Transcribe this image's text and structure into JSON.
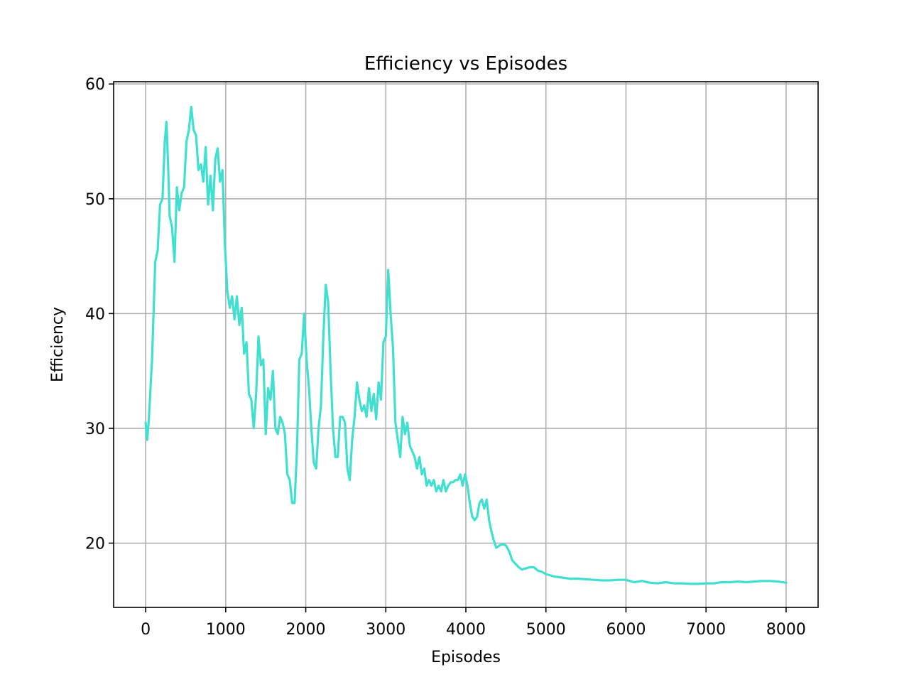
{
  "chart_data": {
    "type": "line",
    "title": "Efficiency vs Episodes",
    "xlabel": "Episodes",
    "ylabel": "Efficiency",
    "xlim": [
      -400,
      8400
    ],
    "ylim": [
      14.4,
      60.2
    ],
    "xticks": [
      0,
      1000,
      2000,
      3000,
      4000,
      5000,
      6000,
      7000,
      8000
    ],
    "yticks": [
      20,
      30,
      40,
      50,
      60
    ],
    "grid": true,
    "legend": "none",
    "series": [
      {
        "color": "#40e0d0",
        "points": [
          [
            0,
            30.5
          ],
          [
            20,
            29.0
          ],
          [
            40,
            30.8
          ],
          [
            80,
            36.0
          ],
          [
            120,
            44.5
          ],
          [
            150,
            45.5
          ],
          [
            180,
            49.5
          ],
          [
            210,
            50.0
          ],
          [
            240,
            55.0
          ],
          [
            260,
            56.7
          ],
          [
            280,
            53.0
          ],
          [
            300,
            48.5
          ],
          [
            330,
            47.5
          ],
          [
            360,
            44.5
          ],
          [
            390,
            51.0
          ],
          [
            420,
            49.0
          ],
          [
            450,
            50.5
          ],
          [
            480,
            51.0
          ],
          [
            510,
            55.0
          ],
          [
            540,
            56.0
          ],
          [
            570,
            58.0
          ],
          [
            600,
            56.0
          ],
          [
            630,
            55.5
          ],
          [
            660,
            52.5
          ],
          [
            690,
            53.0
          ],
          [
            720,
            51.5
          ],
          [
            750,
            54.5
          ],
          [
            780,
            49.5
          ],
          [
            810,
            52.0
          ],
          [
            840,
            49.0
          ],
          [
            870,
            53.5
          ],
          [
            900,
            54.4
          ],
          [
            930,
            51.5
          ],
          [
            960,
            52.5
          ],
          [
            990,
            46.0
          ],
          [
            1020,
            42.0
          ],
          [
            1050,
            40.5
          ],
          [
            1080,
            41.5
          ],
          [
            1110,
            39.5
          ],
          [
            1140,
            41.5
          ],
          [
            1170,
            39.0
          ],
          [
            1200,
            40.5
          ],
          [
            1230,
            36.5
          ],
          [
            1260,
            37.5
          ],
          [
            1290,
            33.0
          ],
          [
            1320,
            32.5
          ],
          [
            1350,
            30.0
          ],
          [
            1380,
            33.0
          ],
          [
            1410,
            38.0
          ],
          [
            1440,
            35.5
          ],
          [
            1470,
            36.0
          ],
          [
            1500,
            29.5
          ],
          [
            1530,
            33.5
          ],
          [
            1560,
            32.5
          ],
          [
            1590,
            35.0
          ],
          [
            1620,
            30.0
          ],
          [
            1650,
            29.5
          ],
          [
            1680,
            31.0
          ],
          [
            1710,
            30.5
          ],
          [
            1740,
            29.5
          ],
          [
            1770,
            26.0
          ],
          [
            1800,
            25.5
          ],
          [
            1830,
            23.5
          ],
          [
            1860,
            23.5
          ],
          [
            1890,
            28.0
          ],
          [
            1920,
            36.0
          ],
          [
            1950,
            36.5
          ],
          [
            1980,
            40.0
          ],
          [
            2010,
            36.0
          ],
          [
            2040,
            33.5
          ],
          [
            2070,
            30.0
          ],
          [
            2100,
            27.0
          ],
          [
            2130,
            26.5
          ],
          [
            2160,
            30.0
          ],
          [
            2190,
            32.0
          ],
          [
            2220,
            38.0
          ],
          [
            2250,
            42.5
          ],
          [
            2280,
            41.0
          ],
          [
            2310,
            35.0
          ],
          [
            2340,
            30.0
          ],
          [
            2370,
            27.5
          ],
          [
            2400,
            27.5
          ],
          [
            2430,
            31.0
          ],
          [
            2460,
            31.0
          ],
          [
            2490,
            30.5
          ],
          [
            2520,
            26.5
          ],
          [
            2550,
            25.5
          ],
          [
            2580,
            29.0
          ],
          [
            2610,
            31.0
          ],
          [
            2640,
            34.0
          ],
          [
            2670,
            32.5
          ],
          [
            2700,
            31.5
          ],
          [
            2730,
            32.0
          ],
          [
            2760,
            31.0
          ],
          [
            2790,
            33.5
          ],
          [
            2820,
            31.5
          ],
          [
            2850,
            33.0
          ],
          [
            2880,
            30.8
          ],
          [
            2910,
            34.0
          ],
          [
            2940,
            32.5
          ],
          [
            2970,
            37.5
          ],
          [
            3000,
            38.0
          ],
          [
            3030,
            43.8
          ],
          [
            3060,
            40.0
          ],
          [
            3090,
            37.0
          ],
          [
            3120,
            30.5
          ],
          [
            3150,
            29.0
          ],
          [
            3180,
            27.5
          ],
          [
            3210,
            31.0
          ],
          [
            3240,
            29.5
          ],
          [
            3270,
            30.5
          ],
          [
            3300,
            28.5
          ],
          [
            3330,
            28.0
          ],
          [
            3360,
            27.5
          ],
          [
            3390,
            26.5
          ],
          [
            3420,
            27.5
          ],
          [
            3450,
            26.0
          ],
          [
            3480,
            26.5
          ],
          [
            3510,
            25.0
          ],
          [
            3540,
            25.5
          ],
          [
            3570,
            25.0
          ],
          [
            3600,
            25.5
          ],
          [
            3630,
            24.5
          ],
          [
            3660,
            25.0
          ],
          [
            3690,
            24.5
          ],
          [
            3720,
            25.5
          ],
          [
            3750,
            24.5
          ],
          [
            3780,
            25.0
          ],
          [
            3810,
            25.3
          ],
          [
            3840,
            25.3
          ],
          [
            3870,
            25.5
          ],
          [
            3900,
            25.5
          ],
          [
            3930,
            26.0
          ],
          [
            3960,
            25.0
          ],
          [
            3990,
            26.0
          ],
          [
            4020,
            25.0
          ],
          [
            4050,
            23.5
          ],
          [
            4080,
            22.3
          ],
          [
            4110,
            22.0
          ],
          [
            4140,
            22.3
          ],
          [
            4170,
            23.5
          ],
          [
            4200,
            23.8
          ],
          [
            4230,
            23.0
          ],
          [
            4260,
            23.8
          ],
          [
            4290,
            22.0
          ],
          [
            4320,
            21.0
          ],
          [
            4350,
            20.2
          ],
          [
            4380,
            19.6
          ],
          [
            4420,
            19.8
          ],
          [
            4460,
            19.9
          ],
          [
            4500,
            19.8
          ],
          [
            4540,
            19.3
          ],
          [
            4580,
            18.5
          ],
          [
            4620,
            18.2
          ],
          [
            4660,
            17.9
          ],
          [
            4700,
            17.7
          ],
          [
            4750,
            17.8
          ],
          [
            4800,
            17.9
          ],
          [
            4850,
            17.9
          ],
          [
            4900,
            17.6
          ],
          [
            4950,
            17.5
          ],
          [
            5000,
            17.3
          ],
          [
            5100,
            17.1
          ],
          [
            5200,
            17.0
          ],
          [
            5300,
            16.9
          ],
          [
            5400,
            16.9
          ],
          [
            5500,
            16.85
          ],
          [
            5600,
            16.8
          ],
          [
            5700,
            16.75
          ],
          [
            5800,
            16.75
          ],
          [
            5900,
            16.8
          ],
          [
            6000,
            16.8
          ],
          [
            6100,
            16.6
          ],
          [
            6200,
            16.7
          ],
          [
            6300,
            16.55
          ],
          [
            6400,
            16.5
          ],
          [
            6500,
            16.6
          ],
          [
            6600,
            16.5
          ],
          [
            6700,
            16.5
          ],
          [
            6800,
            16.45
          ],
          [
            6900,
            16.45
          ],
          [
            7000,
            16.5
          ],
          [
            7100,
            16.5
          ],
          [
            7200,
            16.6
          ],
          [
            7300,
            16.6
          ],
          [
            7400,
            16.65
          ],
          [
            7500,
            16.6
          ],
          [
            7600,
            16.65
          ],
          [
            7700,
            16.7
          ],
          [
            7800,
            16.7
          ],
          [
            7900,
            16.65
          ],
          [
            8000,
            16.55
          ]
        ]
      }
    ]
  }
}
